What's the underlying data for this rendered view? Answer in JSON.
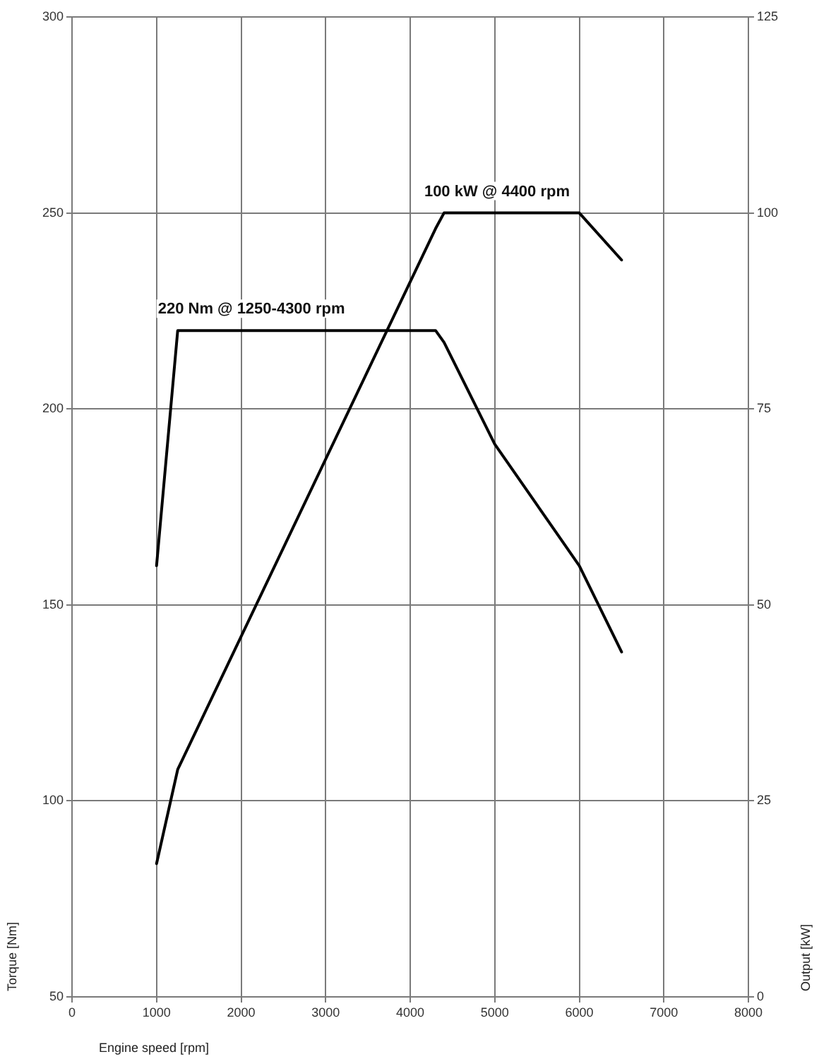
{
  "chart_data": {
    "type": "line",
    "xlabel": "Engine speed [rpm]",
    "ylabel": "Torque [Nm]",
    "y2label": "Output [kW]",
    "xlim": [
      0,
      8000
    ],
    "xticks": [
      0,
      1000,
      2000,
      3000,
      4000,
      5000,
      6000,
      7000,
      8000
    ],
    "ylim": [
      50,
      300
    ],
    "yticks": [
      50,
      100,
      150,
      200,
      250,
      300
    ],
    "y2lim": [
      0,
      125
    ],
    "y2ticks": [
      0,
      25,
      50,
      75,
      100,
      125
    ],
    "grid": true,
    "marker": "none",
    "line_style": "solid",
    "series": [
      {
        "color": "#000000",
        "x": [
          1000,
          1250,
          4300,
          4400,
          5000,
          6000,
          6500
        ],
        "values": [
          160,
          220,
          220,
          217,
          191,
          160,
          138
        ]
      },
      {
        "color": "#000000",
        "axis": "y2",
        "x": [
          1000,
          1250,
          4300,
          4400,
          6000,
          6500
        ],
        "values": [
          17,
          29,
          98,
          100,
          100,
          94
        ]
      }
    ],
    "annotations": [
      {
        "text": "220 Nm @ 1250-4300 rpm",
        "x": 1250,
        "y": 220
      },
      {
        "text": "100 kW @ 4400 rpm",
        "x": 4400,
        "y": 250
      }
    ]
  }
}
